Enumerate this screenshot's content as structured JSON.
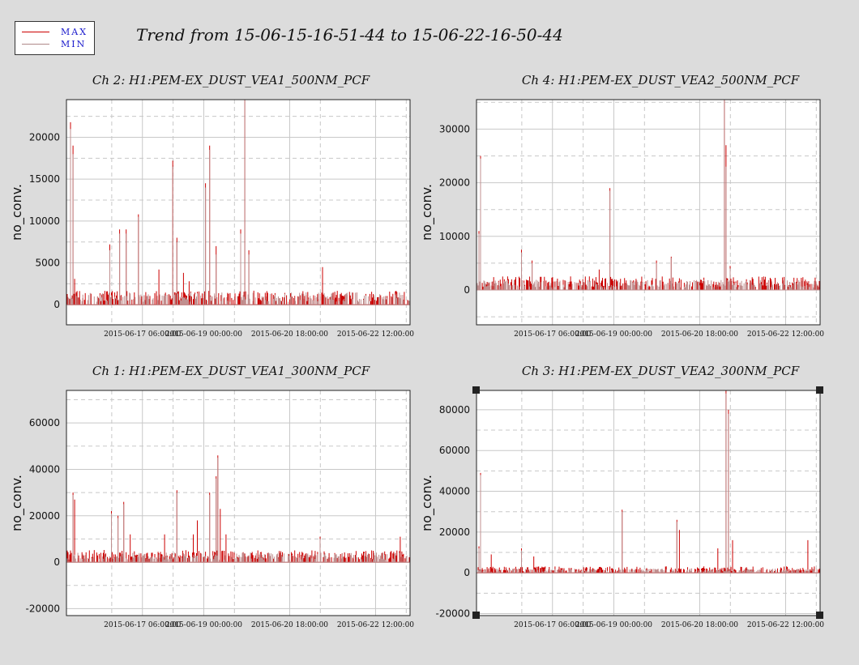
{
  "page": {
    "title": "Trend from 15-06-15-16-51-44 to 15-06-22-16-50-44"
  },
  "legend": {
    "items": [
      {
        "label": "MAX",
        "color": "#cc0000"
      },
      {
        "label": "MIN",
        "color": "#b08a8a"
      }
    ]
  },
  "colors": {
    "max": "#cc0000",
    "min": "#c08f8f",
    "grid": "#c8c8c8",
    "plot_bg": "#ffffff"
  },
  "chart_data": [
    {
      "type": "line",
      "title": "Ch 2: H1:PEM-EX_DUST_VEA1_500NM_PCF",
      "ylabel": "no_conv.",
      "xlabel": "",
      "xlim": [
        0,
        168
      ],
      "ylim": [
        -2400,
        24500
      ],
      "yticks": [
        0,
        5000,
        10000,
        15000,
        20000
      ],
      "xticks": [
        {
          "x": 37.14,
          "label": "2015-06-17 06:00:00"
        },
        {
          "x": 67.14,
          "label": "2015-06-19 00:00:00"
        },
        {
          "x": 109.14,
          "label": "2015-06-20 18:00:00"
        },
        {
          "x": 151.14,
          "label": "2015-06-22 12:00:00"
        }
      ],
      "series": [
        {
          "name": "MAX",
          "baseline": 800,
          "spikes": [
            [
              2,
              21800
            ],
            [
              3,
              19000
            ],
            [
              4,
              3100
            ],
            [
              21,
              7200
            ],
            [
              26,
              9000
            ],
            [
              29,
              9000
            ],
            [
              35,
              10800
            ],
            [
              45,
              4200
            ],
            [
              52,
              17200
            ],
            [
              54,
              8000
            ],
            [
              57,
              3800
            ],
            [
              60,
              2800
            ],
            [
              68,
              14500
            ],
            [
              70,
              19000
            ],
            [
              73,
              7000
            ],
            [
              85,
              9000
            ],
            [
              87,
              29000
            ],
            [
              89,
              6500
            ],
            [
              125,
              4500
            ]
          ]
        },
        {
          "name": "MIN",
          "baseline": 700,
          "spikes": [
            [
              2,
              21000
            ],
            [
              3,
              18000
            ],
            [
              21,
              6500
            ],
            [
              26,
              8500
            ],
            [
              29,
              8500
            ],
            [
              35,
              10500
            ],
            [
              52,
              16500
            ],
            [
              54,
              7500
            ],
            [
              68,
              14000
            ],
            [
              70,
              18500
            ],
            [
              73,
              6000
            ],
            [
              85,
              8500
            ],
            [
              87,
              27000
            ],
            [
              89,
              6000
            ]
          ]
        }
      ]
    },
    {
      "type": "line",
      "title": "Ch 4: H1:PEM-EX_DUST_VEA2_500NM_PCF",
      "ylabel": "no_conv.",
      "xlabel": "",
      "xlim": [
        0,
        168
      ],
      "ylim": [
        -6500,
        35500
      ],
      "yticks": [
        0,
        10000,
        20000,
        30000
      ],
      "xticks": [
        {
          "x": 37.14,
          "label": "2015-06-17 06:00:00"
        },
        {
          "x": 67.14,
          "label": "2015-06-19 00:00:00"
        },
        {
          "x": 109.14,
          "label": "2015-06-20 18:00:00"
        },
        {
          "x": 151.14,
          "label": "2015-06-22 12:00:00"
        }
      ],
      "series": [
        {
          "name": "MAX",
          "baseline": 1200,
          "spikes": [
            [
              1,
              11000
            ],
            [
              2,
              25000
            ],
            [
              22,
              7500
            ],
            [
              27,
              5500
            ],
            [
              60,
              3800
            ],
            [
              65,
              19000
            ],
            [
              88,
              5500
            ],
            [
              95,
              6200
            ],
            [
              121,
              37000
            ],
            [
              122,
              27000
            ],
            [
              124,
              4500
            ]
          ]
        },
        {
          "name": "MIN",
          "baseline": 900,
          "spikes": [
            [
              1,
              10500
            ],
            [
              2,
              24500
            ],
            [
              22,
              7000
            ],
            [
              27,
              5000
            ],
            [
              65,
              18500
            ],
            [
              88,
              5000
            ],
            [
              95,
              6000
            ],
            [
              121,
              36000
            ],
            [
              122,
              23000
            ],
            [
              124,
              4000
            ]
          ]
        }
      ]
    },
    {
      "type": "line",
      "title": "Ch 1: H1:PEM-EX_DUST_VEA1_300NM_PCF",
      "ylabel": "no_conv.",
      "xlabel": "",
      "xlim": [
        0,
        168
      ],
      "ylim": [
        -23000,
        74000
      ],
      "yticks": [
        -20000,
        0,
        20000,
        40000,
        60000
      ],
      "xticks": [
        {
          "x": 37.14,
          "label": "2015-06-17 06:00:00"
        },
        {
          "x": 67.14,
          "label": "2015-06-19 00:00:00"
        },
        {
          "x": 109.14,
          "label": "2015-06-20 18:00:00"
        },
        {
          "x": 151.14,
          "label": "2015-06-22 12:00:00"
        }
      ],
      "series": [
        {
          "name": "MAX",
          "baseline": 2500,
          "spikes": [
            [
              3,
              30000
            ],
            [
              4,
              27000
            ],
            [
              22,
              22000
            ],
            [
              25,
              20000
            ],
            [
              28,
              26000
            ],
            [
              31,
              12000
            ],
            [
              48,
              12000
            ],
            [
              54,
              31000
            ],
            [
              62,
              12000
            ],
            [
              64,
              18000
            ],
            [
              70,
              30000
            ],
            [
              73,
              37000
            ],
            [
              74,
              46000
            ],
            [
              75,
              23000
            ],
            [
              78,
              12000
            ],
            [
              124,
              11000
            ],
            [
              163,
              11000
            ]
          ]
        },
        {
          "name": "MIN",
          "baseline": 2000,
          "spikes": [
            [
              3,
              29000
            ],
            [
              22,
              21000
            ],
            [
              25,
              19000
            ],
            [
              28,
              25000
            ],
            [
              54,
              30000
            ],
            [
              70,
              29000
            ],
            [
              73,
              36000
            ],
            [
              74,
              45000
            ],
            [
              124,
              10000
            ]
          ]
        }
      ]
    },
    {
      "type": "line",
      "title": "Ch 3: H1:PEM-EX_DUST_VEA2_300NM_PCF",
      "ylabel": "no_conv.",
      "xlabel": "",
      "xlim": [
        0,
        168
      ],
      "ylim": [
        -21000,
        89500
      ],
      "yticks": [
        -20000,
        0,
        20000,
        40000,
        60000,
        80000
      ],
      "xticks": [
        {
          "x": 37.14,
          "label": "2015-06-17 06:00:00"
        },
        {
          "x": 67.14,
          "label": "2015-06-19 00:00:00"
        },
        {
          "x": 109.14,
          "label": "2015-06-20 18:00:00"
        },
        {
          "x": 151.14,
          "label": "2015-06-22 12:00:00"
        }
      ],
      "series": [
        {
          "name": "MAX",
          "baseline": 1500,
          "spikes": [
            [
              1,
              13000
            ],
            [
              2,
              49000
            ],
            [
              7,
              9000
            ],
            [
              22,
              12000
            ],
            [
              28,
              8000
            ],
            [
              71,
              31000
            ],
            [
              98,
              26000
            ],
            [
              99,
              21000
            ],
            [
              118,
              12000
            ],
            [
              122,
              90000
            ],
            [
              123,
              80000
            ],
            [
              125,
              16000
            ],
            [
              162,
              16000
            ]
          ]
        },
        {
          "name": "MIN",
          "baseline": 1000,
          "spikes": [
            [
              1,
              12000
            ],
            [
              2,
              48000
            ],
            [
              22,
              11000
            ],
            [
              71,
              30000
            ],
            [
              98,
              25000
            ],
            [
              122,
              88000
            ],
            [
              123,
              78000
            ]
          ]
        }
      ]
    }
  ]
}
